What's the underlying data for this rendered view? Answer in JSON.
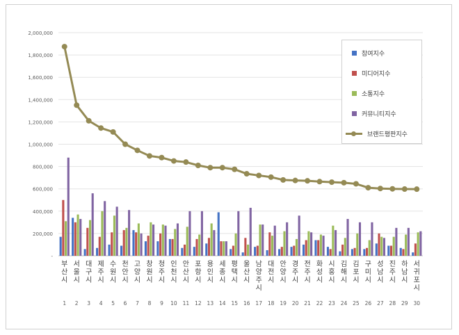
{
  "chart_data": {
    "type": "bar",
    "title": "",
    "xlabel": "",
    "ylabel": "",
    "ylim": [
      0,
      2000000
    ],
    "yticks": [
      "-",
      "200,000",
      "400,000",
      "600,000",
      "800,000",
      "1,000,000",
      "1,200,000",
      "1,400,000",
      "1,600,000",
      "1,800,000",
      "2,000,000"
    ],
    "categories": [
      "부산시",
      "서울시",
      "대구시",
      "제주시",
      "수원시",
      "천안시",
      "고양시",
      "창원시",
      "청주시",
      "인천시",
      "안산시",
      "포항시",
      "용인시",
      "세종시",
      "평택시",
      "울산시",
      "남양주시",
      "대전시",
      "안양시",
      "경주시",
      "전주시",
      "화성시",
      "시흥시",
      "김해시",
      "김포시",
      "구미시",
      "성남시",
      "진주시",
      "하남시",
      "서귀포시"
    ],
    "ranks": [
      "1",
      "2",
      "3",
      "4",
      "5",
      "6",
      "7",
      "8",
      "9",
      "10",
      "11",
      "12",
      "13",
      "14",
      "15",
      "16",
      "17",
      "18",
      "19",
      "20",
      "21",
      "22",
      "23",
      "24",
      "25",
      "26",
      "27",
      "28",
      "29",
      "30"
    ],
    "grid": true,
    "legend_position": "top-right",
    "series": [
      {
        "name": "참여지수",
        "type": "bar",
        "color": "#4472c4",
        "values": [
          170000,
          340000,
          60000,
          70000,
          100000,
          90000,
          230000,
          130000,
          130000,
          150000,
          70000,
          80000,
          110000,
          390000,
          60000,
          30000,
          80000,
          50000,
          60000,
          80000,
          100000,
          140000,
          80000,
          40000,
          60000,
          60000,
          110000,
          90000,
          70000,
          30000
        ]
      },
      {
        "name": "미디어지수",
        "type": "bar",
        "color": "#c0504d",
        "values": [
          500000,
          300000,
          250000,
          170000,
          210000,
          230000,
          210000,
          180000,
          200000,
          150000,
          100000,
          150000,
          160000,
          130000,
          90000,
          160000,
          90000,
          210000,
          80000,
          90000,
          140000,
          140000,
          60000,
          100000,
          70000,
          70000,
          200000,
          90000,
          60000,
          110000
        ]
      },
      {
        "name": "소통지수",
        "type": "bar",
        "color": "#9bbb59",
        "values": [
          310000,
          370000,
          320000,
          400000,
          360000,
          250000,
          290000,
          300000,
          280000,
          240000,
          260000,
          190000,
          290000,
          130000,
          200000,
          100000,
          280000,
          180000,
          220000,
          150000,
          220000,
          190000,
          270000,
          160000,
          200000,
          140000,
          170000,
          170000,
          190000,
          210000
        ]
      },
      {
        "name": "커뮤니티지수",
        "type": "bar",
        "color": "#8064a2",
        "values": [
          880000,
          330000,
          560000,
          490000,
          440000,
          410000,
          200000,
          280000,
          270000,
          290000,
          400000,
          400000,
          230000,
          130000,
          400000,
          430000,
          280000,
          270000,
          300000,
          360000,
          210000,
          180000,
          230000,
          330000,
          300000,
          300000,
          160000,
          250000,
          250000,
          220000
        ]
      },
      {
        "name": "브랜드평판지수",
        "type": "line",
        "color": "#948a54",
        "values": [
          1875000,
          1350000,
          1210000,
          1145000,
          1110000,
          1000000,
          945000,
          895000,
          880000,
          850000,
          840000,
          810000,
          790000,
          790000,
          775000,
          735000,
          720000,
          705000,
          680000,
          675000,
          672000,
          665000,
          660000,
          655000,
          645000,
          610000,
          603000,
          600000,
          598000,
          597000
        ]
      }
    ]
  }
}
